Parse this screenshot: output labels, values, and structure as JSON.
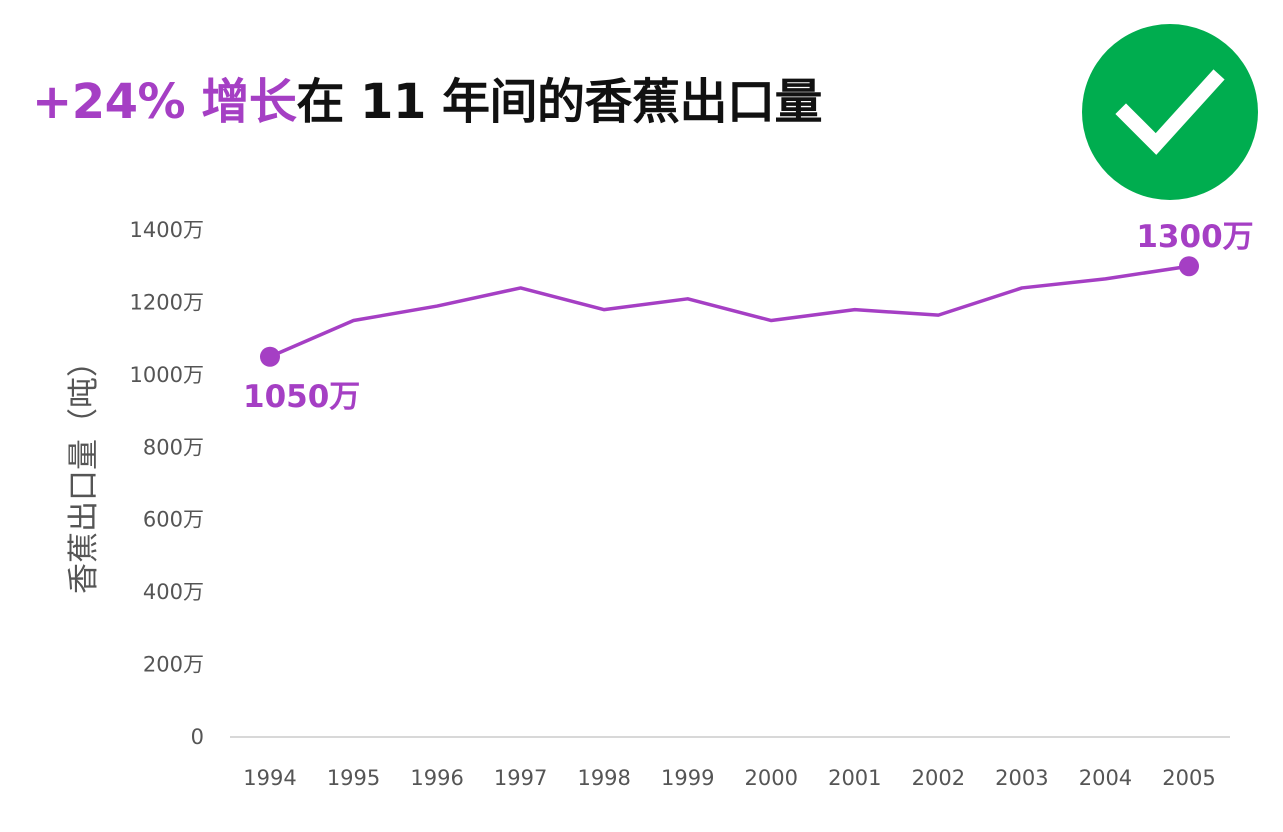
{
  "header": {
    "title_highlight": "+24% 增长",
    "title_rest": "在 11 年间的香蕉出口量"
  },
  "badge": {
    "icon": "checkmark-icon",
    "color": "#00ad4f"
  },
  "chart_data": {
    "type": "line",
    "title": "+24% 增长在 11 年间的香蕉出口量",
    "ylabel": "香蕉出口量（吨）",
    "xlabel": "",
    "x": [
      "1994",
      "1995",
      "1996",
      "1997",
      "1998",
      "1999",
      "2000",
      "2001",
      "2002",
      "2003",
      "2004",
      "2005"
    ],
    "series": [
      {
        "values": [
          10500000,
          11500000,
          11900000,
          12400000,
          11800000,
          12100000,
          11500000,
          11800000,
          11650000,
          12400000,
          12650000,
          13000000
        ],
        "color": "#a53fc4"
      }
    ],
    "ylim": [
      0,
      14000000
    ],
    "yticks": [
      0,
      2000000,
      4000000,
      6000000,
      8000000,
      10000000,
      12000000,
      14000000
    ],
    "ytick_labels": [
      "0",
      "200万",
      "400万",
      "600万",
      "800万",
      "1000万",
      "1200万",
      "1400万"
    ],
    "annotations": [
      {
        "x": "1994",
        "value": 10500000,
        "text": "1050万"
      },
      {
        "x": "2005",
        "value": 13000000,
        "text": "1300万"
      }
    ],
    "grid": false,
    "baseline_color": "#cccccc",
    "tick_color": "#555555"
  }
}
